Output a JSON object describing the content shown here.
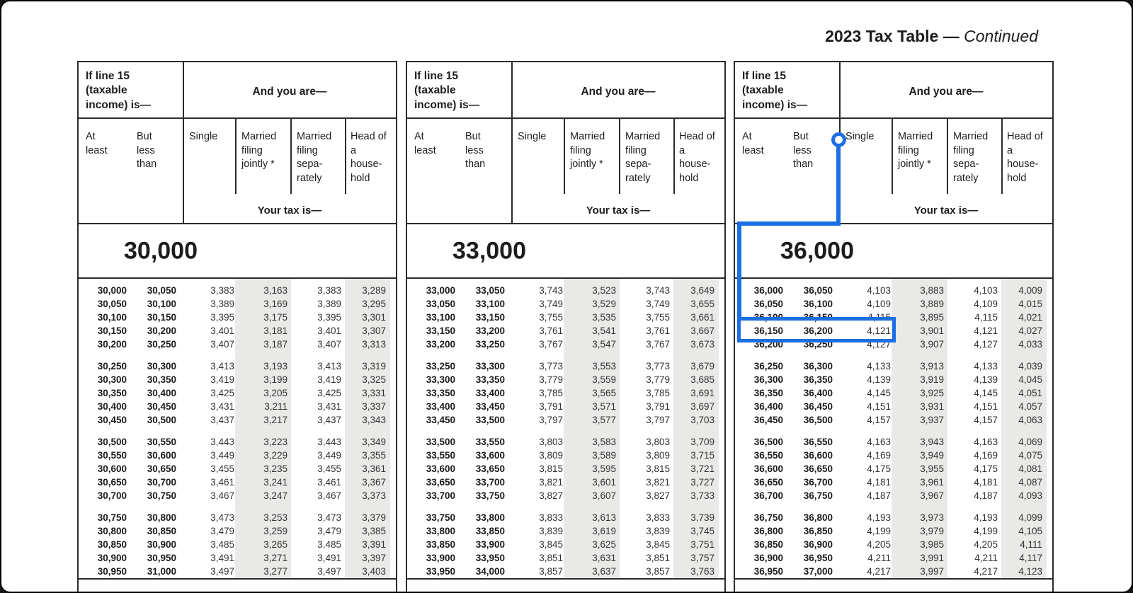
{
  "title": {
    "main": "2023 Tax Table",
    "separator": " — ",
    "continued": "Continued"
  },
  "header": {
    "if_line15": "If line 15\n(taxable\nincome) is—",
    "and_you_are": "And you are—",
    "at_least": "At\nleast",
    "but_less_than": "But\nless\nthan",
    "single": "Single",
    "married_jointly": "Married\nfiling\njointly *",
    "married_separately": "Married\nfiling\nsepa-\nrately",
    "head_household": "Head of\na\nhouse-\nhold",
    "your_tax_is": "Your tax is—"
  },
  "callout": {
    "color": "#1b6ee3",
    "marker_column": "Single",
    "highlighted_row": {
      "at_least": "36,150",
      "but_less_than": "36,200",
      "single_tax": "4,121"
    }
  },
  "panels": [
    {
      "section": "30,000",
      "groups": [
        [
          [
            "30,000",
            "30,050",
            "3,383",
            "3,163",
            "3,383",
            "3,289"
          ],
          [
            "30,050",
            "30,100",
            "3,389",
            "3,169",
            "3,389",
            "3,295"
          ],
          [
            "30,100",
            "30,150",
            "3,395",
            "3,175",
            "3,395",
            "3,301"
          ],
          [
            "30,150",
            "30,200",
            "3,401",
            "3,181",
            "3,401",
            "3,307"
          ],
          [
            "30,200",
            "30,250",
            "3,407",
            "3,187",
            "3,407",
            "3,313"
          ]
        ],
        [
          [
            "30,250",
            "30,300",
            "3,413",
            "3,193",
            "3,413",
            "3,319"
          ],
          [
            "30,300",
            "30,350",
            "3,419",
            "3,199",
            "3,419",
            "3,325"
          ],
          [
            "30,350",
            "30,400",
            "3,425",
            "3,205",
            "3,425",
            "3,331"
          ],
          [
            "30,400",
            "30,450",
            "3,431",
            "3,211",
            "3,431",
            "3,337"
          ],
          [
            "30,450",
            "30,500",
            "3,437",
            "3,217",
            "3,437",
            "3,343"
          ]
        ],
        [
          [
            "30,500",
            "30,550",
            "3,443",
            "3,223",
            "3,443",
            "3,349"
          ],
          [
            "30,550",
            "30,600",
            "3,449",
            "3,229",
            "3,449",
            "3,355"
          ],
          [
            "30,600",
            "30,650",
            "3,455",
            "3,235",
            "3,455",
            "3,361"
          ],
          [
            "30,650",
            "30,700",
            "3,461",
            "3,241",
            "3,461",
            "3,367"
          ],
          [
            "30,700",
            "30,750",
            "3,467",
            "3,247",
            "3,467",
            "3,373"
          ]
        ],
        [
          [
            "30,750",
            "30,800",
            "3,473",
            "3,253",
            "3,473",
            "3,379"
          ],
          [
            "30,800",
            "30,850",
            "3,479",
            "3,259",
            "3,479",
            "3,385"
          ],
          [
            "30,850",
            "30,900",
            "3,485",
            "3,265",
            "3,485",
            "3,391"
          ],
          [
            "30,900",
            "30,950",
            "3,491",
            "3,271",
            "3,491",
            "3,397"
          ],
          [
            "30,950",
            "31,000",
            "3,497",
            "3,277",
            "3,497",
            "3,403"
          ]
        ]
      ]
    },
    {
      "section": "33,000",
      "groups": [
        [
          [
            "33,000",
            "33,050",
            "3,743",
            "3,523",
            "3,743",
            "3,649"
          ],
          [
            "33,050",
            "33,100",
            "3,749",
            "3,529",
            "3,749",
            "3,655"
          ],
          [
            "33,100",
            "33,150",
            "3,755",
            "3,535",
            "3,755",
            "3,661"
          ],
          [
            "33,150",
            "33,200",
            "3,761",
            "3,541",
            "3,761",
            "3,667"
          ],
          [
            "33,200",
            "33,250",
            "3,767",
            "3,547",
            "3,767",
            "3,673"
          ]
        ],
        [
          [
            "33,250",
            "33,300",
            "3,773",
            "3,553",
            "3,773",
            "3,679"
          ],
          [
            "33,300",
            "33,350",
            "3,779",
            "3,559",
            "3,779",
            "3,685"
          ],
          [
            "33,350",
            "33,400",
            "3,785",
            "3,565",
            "3,785",
            "3,691"
          ],
          [
            "33,400",
            "33,450",
            "3,791",
            "3,571",
            "3,791",
            "3,697"
          ],
          [
            "33,450",
            "33,500",
            "3,797",
            "3,577",
            "3,797",
            "3,703"
          ]
        ],
        [
          [
            "33,500",
            "33,550",
            "3,803",
            "3,583",
            "3,803",
            "3,709"
          ],
          [
            "33,550",
            "33,600",
            "3,809",
            "3,589",
            "3,809",
            "3,715"
          ],
          [
            "33,600",
            "33,650",
            "3,815",
            "3,595",
            "3,815",
            "3,721"
          ],
          [
            "33,650",
            "33,700",
            "3,821",
            "3,601",
            "3,821",
            "3,727"
          ],
          [
            "33,700",
            "33,750",
            "3,827",
            "3,607",
            "3,827",
            "3,733"
          ]
        ],
        [
          [
            "33,750",
            "33,800",
            "3,833",
            "3,613",
            "3,833",
            "3,739"
          ],
          [
            "33,800",
            "33,850",
            "3,839",
            "3,619",
            "3,839",
            "3,745"
          ],
          [
            "33,850",
            "33,900",
            "3,845",
            "3,625",
            "3,845",
            "3,751"
          ],
          [
            "33,900",
            "33,950",
            "3,851",
            "3,631",
            "3,851",
            "3,757"
          ],
          [
            "33,950",
            "34,000",
            "3,857",
            "3,637",
            "3,857",
            "3,763"
          ]
        ]
      ]
    },
    {
      "section": "36,000",
      "groups": [
        [
          [
            "36,000",
            "36,050",
            "4,103",
            "3,883",
            "4,103",
            "4,009"
          ],
          [
            "36,050",
            "36,100",
            "4,109",
            "3,889",
            "4,109",
            "4,015"
          ],
          [
            "36,100",
            "36,150",
            "4,115",
            "3,895",
            "4,115",
            "4,021"
          ],
          [
            "36,150",
            "36,200",
            "4,121",
            "3,901",
            "4,121",
            "4,027"
          ],
          [
            "36,200",
            "36,250",
            "4,127",
            "3,907",
            "4,127",
            "4,033"
          ]
        ],
        [
          [
            "36,250",
            "36,300",
            "4,133",
            "3,913",
            "4,133",
            "4,039"
          ],
          [
            "36,300",
            "36,350",
            "4,139",
            "3,919",
            "4,139",
            "4,045"
          ],
          [
            "36,350",
            "36,400",
            "4,145",
            "3,925",
            "4,145",
            "4,051"
          ],
          [
            "36,400",
            "36,450",
            "4,151",
            "3,931",
            "4,151",
            "4,057"
          ],
          [
            "36,450",
            "36,500",
            "4,157",
            "3,937",
            "4,157",
            "4,063"
          ]
        ],
        [
          [
            "36,500",
            "36,550",
            "4,163",
            "3,943",
            "4,163",
            "4,069"
          ],
          [
            "36,550",
            "36,600",
            "4,169",
            "3,949",
            "4,169",
            "4,075"
          ],
          [
            "36,600",
            "36,650",
            "4,175",
            "3,955",
            "4,175",
            "4,081"
          ],
          [
            "36,650",
            "36,700",
            "4,181",
            "3,961",
            "4,181",
            "4,087"
          ],
          [
            "36,700",
            "36,750",
            "4,187",
            "3,967",
            "4,187",
            "4,093"
          ]
        ],
        [
          [
            "36,750",
            "36,800",
            "4,193",
            "3,973",
            "4,193",
            "4,099"
          ],
          [
            "36,800",
            "36,850",
            "4,199",
            "3,979",
            "4,199",
            "4,105"
          ],
          [
            "36,850",
            "36,900",
            "4,205",
            "3,985",
            "4,205",
            "4,111"
          ],
          [
            "36,900",
            "36,950",
            "4,211",
            "3,991",
            "4,211",
            "4,117"
          ],
          [
            "36,950",
            "37,000",
            "4,217",
            "3,997",
            "4,217",
            "4,123"
          ]
        ]
      ]
    }
  ]
}
